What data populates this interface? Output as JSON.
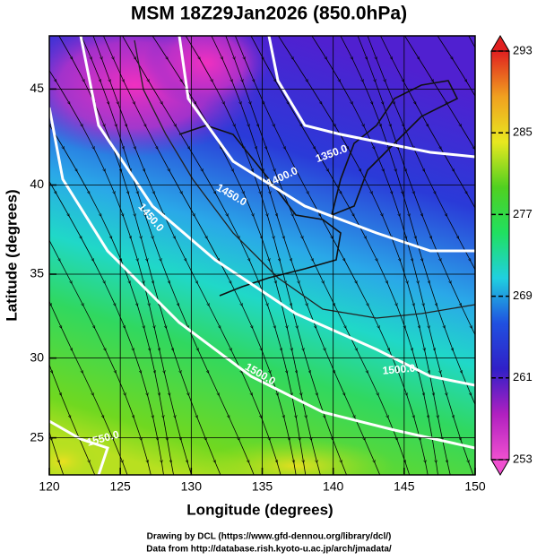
{
  "title": "MSM 18Z29Jan2026 (850.0hPa)",
  "projection": "mercator",
  "x_axis": {
    "label": "Longitude (degrees)",
    "lim": [
      120,
      150
    ],
    "ticks": [
      120,
      125,
      130,
      135,
      140,
      145,
      150
    ]
  },
  "y_axis": {
    "label": "Latitude  (degrees)",
    "lim": [
      22.6,
      47.6
    ],
    "ticks": [
      25,
      30,
      35,
      40,
      45
    ]
  },
  "grid": true,
  "colorbar": {
    "lim": [
      253,
      293
    ],
    "ticks": [
      253,
      261,
      269,
      277,
      285,
      293
    ],
    "colors": [
      "#f050d0",
      "#b020c0",
      "#3020c8",
      "#2050e0",
      "#20d0e0",
      "#20e060",
      "#50d020",
      "#e8e820",
      "#f0a020",
      "#e02020"
    ]
  },
  "contour_labels": [
    "1350.0",
    "1400.0",
    "1450.0",
    "1450.0",
    "1500.0",
    "1500.0",
    "1550.0"
  ],
  "credits": [
    "Drawing by DCL (https://www.gfd-dennou.org/library/dcl/)",
    "Data from http://database.rish.kyoto-u.ac.jp/arch/jmadata/"
  ]
}
